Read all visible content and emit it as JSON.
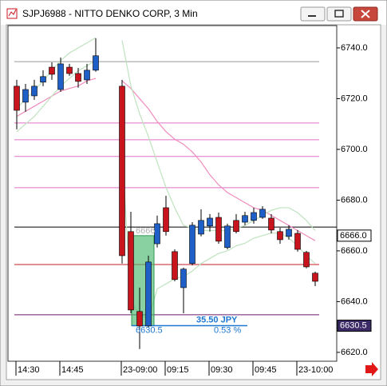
{
  "window": {
    "title": "SJPJ6988 - NITTO DENKO CORP, 3 Min"
  },
  "chart_data": {
    "type": "candlestick",
    "categories": [
      "14:30",
      null,
      null,
      null,
      null,
      "14:45",
      null,
      null,
      null,
      null,
      null,
      null,
      "23-09:00",
      null,
      null,
      null,
      null,
      "09:15",
      null,
      null,
      null,
      null,
      "09:30",
      null,
      null,
      null,
      null,
      "09:45",
      null,
      null,
      null,
      null,
      "23-10:00",
      null,
      null
    ],
    "open": [
      6724.9,
      6718.6,
      6721.1,
      6726.5,
      6732.4,
      6723.6,
      6732.4,
      6729.9,
      6727.4,
      6731.2,
      null,
      null,
      6724.9,
      6667.6,
      6636.1,
      6630.4,
      6662.8,
      6677.0,
      6659.7,
      6645.5,
      6655.0,
      6666.6,
      6669.8,
      6673.2,
      6661.3,
      6672.0,
      6671.3,
      6672.0,
      6673.2,
      6672.9,
      6667.6,
      6665.7,
      6666.9,
      6659.4,
      6651.2
    ],
    "high": [
      6727.4,
      6725.8,
      6727.4,
      6731.2,
      6734.3,
      6736.2,
      6733.7,
      6732.1,
      6733.7,
      6743.8,
      null,
      null,
      6727.4,
      6675.4,
      6645.5,
      6658.1,
      6673.9,
      6681.7,
      6660.6,
      6653.4,
      6671.3,
      6676.4,
      6674.5,
      6675.1,
      6670.7,
      6674.5,
      6675.4,
      6677.0,
      6677.6,
      6674.5,
      6669.1,
      6670.1,
      6668.2,
      6660.0,
      6651.8
    ],
    "low": [
      6707.9,
      6714.8,
      6719.5,
      6724.9,
      6727.4,
      6722.7,
      6729.0,
      6724.3,
      6725.8,
      6730.6,
      null,
      null,
      6655.0,
      6635.4,
      6621.3,
      6629.8,
      6661.3,
      6666.0,
      6648.0,
      6635.4,
      6654.3,
      6665.7,
      6667.6,
      6662.8,
      6660.6,
      6666.9,
      6670.1,
      6670.7,
      6672.6,
      6666.9,
      6662.8,
      6664.4,
      6659.7,
      6653.1,
      6646.1
    ],
    "close": [
      6715.4,
      6723.6,
      6724.9,
      6728.7,
      6729.6,
      6733.7,
      6729.9,
      6726.8,
      6731.2,
      6736.9,
      null,
      null,
      6658.1,
      6636.7,
      6630.4,
      6655.6,
      6670.7,
      6667.6,
      6648.7,
      6652.8,
      6670.1,
      6672.0,
      6672.9,
      6663.8,
      6669.8,
      6667.6,
      6673.9,
      6675.1,
      6676.4,
      6668.2,
      6664.4,
      6668.5,
      6660.6,
      6653.7,
      6648.0
    ],
    "up_color": "#1f5fc8",
    "down_color": "#c8141c",
    "ylim": [
      6616.5,
      6748.8
    ],
    "yticks": [
      {
        "value": 6620,
        "label": "6620.0"
      },
      {
        "value": 6640,
        "label": "6640.0"
      },
      {
        "value": 6660,
        "label": "6660.0"
      },
      {
        "value": 6680,
        "label": "6680.0"
      },
      {
        "value": 6700,
        "label": "6700.0"
      },
      {
        "value": 6720,
        "label": "6720.0"
      },
      {
        "value": 6740,
        "label": "6740.0"
      }
    ],
    "levels": [
      {
        "value": 6734.6,
        "color": "#9a9a9a"
      },
      {
        "value": 6710.4,
        "color": "#e070c8"
      },
      {
        "value": 6703.8,
        "color": "#e070c8"
      },
      {
        "value": 6697.2,
        "color": "#e070c8"
      },
      {
        "value": 6684.9,
        "color": "#e070c8"
      },
      {
        "value": 6669.4,
        "color": "#000000"
      },
      {
        "value": 6654.6,
        "color": "#c81e28"
      },
      {
        "value": 6634.8,
        "color": "#6a1a6a"
      }
    ],
    "overlays": [
      {
        "color": "#f08cbc",
        "values": [
          6713,
          6715,
          6717,
          6719,
          6721,
          6723,
          6724,
          6725,
          6727,
          6728,
          null,
          null,
          6727,
          6724,
          6720,
          6716,
          6711,
          6707,
          6704,
          6702,
          6699,
          6695,
          6690,
          6686,
          6683,
          6681,
          6679,
          6677,
          6676,
          6674,
          6672,
          6670,
          6668,
          6666,
          6664
        ]
      },
      {
        "color": "#bfe3bf",
        "values": [
          6716,
          6720,
          6723,
          6727,
          6731,
          6735,
          6738,
          6740,
          6742,
          6744,
          null,
          null,
          6743,
          6725,
          6714,
          6705,
          6695,
          6685,
          6677,
          6670,
          6669,
          6668,
          6668,
          6668,
          6668,
          6669,
          6670,
          6672,
          6674,
          6676,
          6677,
          6677,
          6675,
          6672,
          6668
        ]
      },
      {
        "color": "#bfe3bf",
        "values": [
          6707,
          6710,
          6713,
          6717,
          6721,
          6725,
          6728,
          6731,
          6733,
          6735,
          null,
          null,
          6700,
          6640,
          6635,
          6633,
          6645,
          6647,
          6649,
          6650,
          6652,
          6655,
          6657,
          6659,
          6660,
          6662,
          6663,
          6665,
          6666,
          6667,
          6667,
          6665,
          6662,
          6658,
          6655
        ]
      }
    ],
    "price_tags": [
      {
        "value": 6666.0,
        "label": "6666.0"
      },
      {
        "value": 6630.5,
        "label": "6630.5"
      }
    ],
    "ruler": {
      "high": 6666,
      "low": 6630.5,
      "change": "35.50 JPY",
      "percent": "0.53 %"
    }
  }
}
